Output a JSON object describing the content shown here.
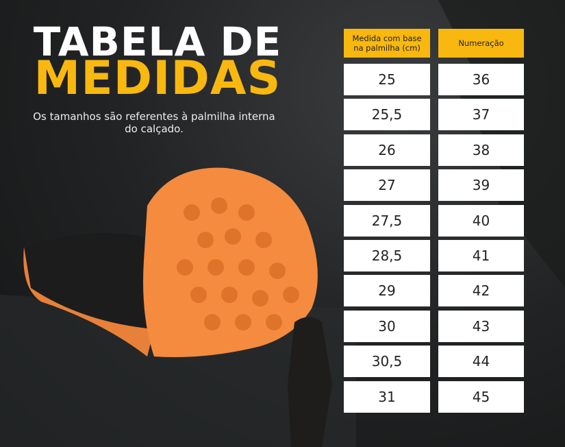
{
  "header": {
    "title_line1": "TABELA DE",
    "title_line2": "MEDIDAS",
    "subtitle_line1": "Os tamanhos são referentes à palmilha interna",
    "subtitle_line2": "do calçado."
  },
  "table": {
    "columns": [
      "Medida com base na palmilha (cm)",
      "Numeração"
    ],
    "rows": [
      [
        "25",
        "36"
      ],
      [
        "25,5",
        "37"
      ],
      [
        "26",
        "38"
      ],
      [
        "27",
        "39"
      ],
      [
        "27,5",
        "40"
      ],
      [
        "28,5",
        "41"
      ],
      [
        "29",
        "42"
      ],
      [
        "30",
        "43"
      ],
      [
        "30,5",
        "44"
      ],
      [
        "31",
        "45"
      ]
    ]
  }
}
